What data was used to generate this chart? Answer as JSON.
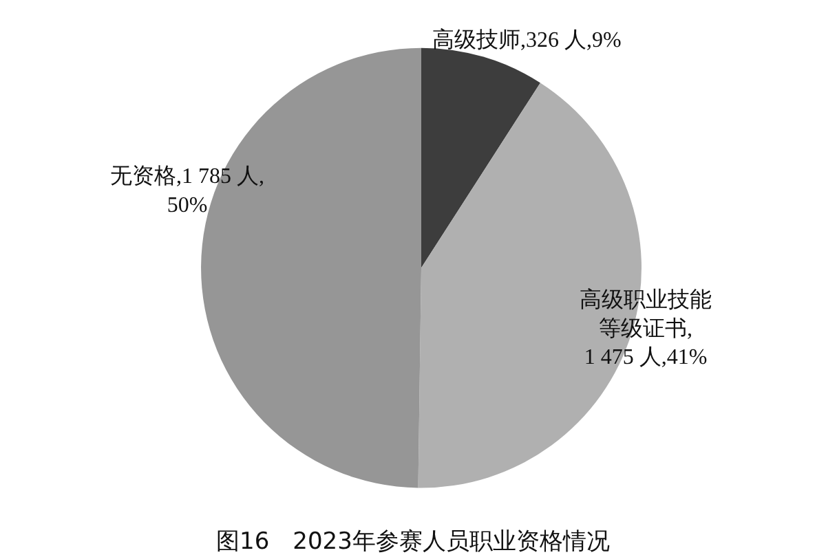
{
  "chart_data": {
    "type": "pie",
    "title": "图16　2023年参赛人员职业资格情况",
    "categories": [
      "高级技师",
      "高级职业技能等级证书",
      "无资格"
    ],
    "values": [
      326,
      1475,
      1785
    ],
    "value_labels": [
      ",326 人,9%",
      ",1 475 人,41%",
      ",1 785 人,50%"
    ],
    "colors": [
      "#3d3d3d",
      "#b0b0b0",
      "#969696"
    ]
  }
}
